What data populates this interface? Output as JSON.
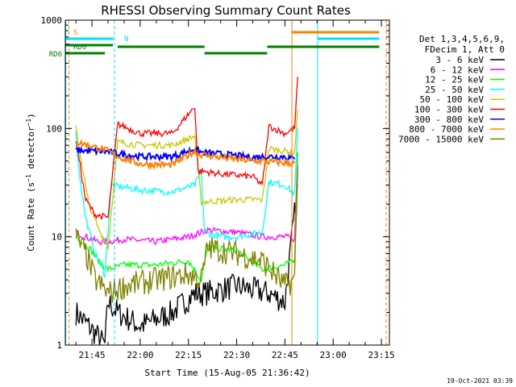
{
  "chart_data": {
    "type": "line",
    "title": "RHESSI Observing Summary Count Rates",
    "xlabel": "Start Time (15-Aug-05 21:36:42)",
    "ylabel": "Count Rate (s⁻¹ detector⁻¹)",
    "ylabel_main": "Count Rate (s",
    "ylabel_sup1": "−1",
    "ylabel_mid": " detector",
    "ylabel_sup2": "−1",
    "ylabel_end": ")",
    "yscale": "log",
    "ylim": [
      1,
      1000
    ],
    "xlim": [
      "21:36:42",
      "23:17:30"
    ],
    "x_ticks": [
      "21:45",
      "22:00",
      "22:15",
      "22:30",
      "22:45",
      "23:00",
      "23:15"
    ],
    "y_ticks": [
      "1",
      "10",
      "100",
      "1000"
    ],
    "legend_header": [
      "Det 1,3,4,5,6,9,",
      "FDecim 1, Att 0"
    ],
    "legend_position": "right",
    "footer_date": "19-Oct-2021 03:39",
    "flag_labels": {
      "saa": "S",
      "night": "N",
      "rd0": "RD0",
      "rd6": "RD6"
    },
    "flag_colors": {
      "saa": "#ff8000",
      "night": "#00e0ff",
      "rd": "#008000"
    },
    "series": [
      {
        "name": "3 - 6 keV",
        "color": "#000000",
        "x": [
          "21:40",
          "21:44",
          "21:49",
          "21:50",
          "21:53",
          "22:00",
          "22:10",
          "22:17",
          "22:20",
          "22:30",
          "22:40",
          "22:45",
          "22:49"
        ],
        "y": [
          2,
          1.5,
          1,
          2.5,
          2,
          1.5,
          2,
          3,
          3,
          3.5,
          3,
          2.5,
          30
        ]
      },
      {
        "name": "6 - 12 keV",
        "color": "#ff00ff",
        "x": [
          "21:40",
          "21:43",
          "21:47",
          "21:50",
          "21:55",
          "22:05",
          "22:15",
          "22:19",
          "22:21",
          "22:30",
          "22:38",
          "22:45",
          "22:48",
          "22:49"
        ],
        "y": [
          11,
          10,
          9,
          9,
          9.5,
          9,
          10,
          11,
          11.5,
          11,
          10,
          10,
          9.5,
          60
        ]
      },
      {
        "name": "12 - 25 keV",
        "color": "#00ff00",
        "x": [
          "21:40",
          "21:44",
          "21:47",
          "21:50",
          "21:55",
          "22:05",
          "22:15",
          "22:19",
          "22:21",
          "22:30",
          "22:38",
          "22:45",
          "22:48",
          "22:49"
        ],
        "y": [
          10,
          8,
          6,
          5,
          5.5,
          5.5,
          6,
          4,
          8,
          7.5,
          5,
          5.5,
          6,
          60
        ]
      },
      {
        "name": "25 - 50 keV",
        "color": "#00ffff",
        "x": [
          "21:40",
          "21:41",
          "21:43",
          "21:46",
          "21:49",
          "21:51",
          "22:00",
          "22:10",
          "22:17",
          "22:19",
          "22:20",
          "22:25",
          "22:30",
          "22:38",
          "22:40",
          "22:45",
          "22:48",
          "22:49"
        ],
        "y": [
          90,
          40,
          15,
          7,
          4.5,
          30,
          27,
          26,
          30,
          40,
          11,
          10,
          10,
          11,
          32,
          30,
          25,
          100
        ]
      },
      {
        "name": "50 - 100 keV",
        "color": "#c8c800",
        "x": [
          "21:40",
          "21:44",
          "21:47",
          "21:50",
          "21:53",
          "22:00",
          "22:10",
          "22:17",
          "22:19",
          "22:20",
          "22:30",
          "22:38",
          "22:40",
          "22:45",
          "22:48",
          "22:49"
        ],
        "y": [
          100,
          20,
          12,
          8,
          75,
          70,
          70,
          85,
          21,
          21,
          22,
          22,
          65,
          62,
          60,
          150
        ]
      },
      {
        "name": "100 - 300 keV",
        "color": "#ff0000",
        "x": [
          "21:40",
          "21:43",
          "21:46",
          "21:50",
          "21:53",
          "22:00",
          "22:10",
          "22:17",
          "22:18",
          "22:20",
          "22:25",
          "22:30",
          "22:35",
          "22:38",
          "22:40",
          "22:45",
          "22:48",
          "22:49"
        ],
        "y": [
          80,
          22,
          16,
          15,
          110,
          90,
          90,
          160,
          40,
          40,
          38,
          37,
          36,
          30,
          105,
          90,
          100,
          300
        ]
      },
      {
        "name": "300 - 800 keV",
        "color": "#0000ff",
        "x": [
          "21:40",
          "21:44",
          "21:50",
          "21:51",
          "22:00",
          "22:10",
          "22:17",
          "22:19",
          "22:25",
          "22:30",
          "22:35",
          "22:38",
          "22:45",
          "22:48"
        ],
        "y": [
          63,
          62,
          61,
          60,
          55,
          55,
          65,
          60,
          58,
          56,
          54,
          55,
          55,
          52
        ]
      },
      {
        "name": "800 - 7000 keV",
        "color": "#ff8000",
        "x": [
          "21:40",
          "21:44",
          "21:50",
          "21:53",
          "22:00",
          "22:10",
          "22:17",
          "22:18",
          "22:25",
          "22:30",
          "22:35",
          "22:38",
          "22:45",
          "22:48"
        ],
        "y": [
          75,
          70,
          62,
          55,
          47,
          46,
          62,
          58,
          54,
          52,
          50,
          50,
          48,
          48
        ]
      },
      {
        "name": "7000 - 15000 keV",
        "color": "#808000",
        "x": [
          "21:40",
          "21:43",
          "21:46",
          "21:50",
          "21:55",
          "22:05",
          "22:15",
          "22:19",
          "22:21",
          "22:25",
          "22:30",
          "22:38",
          "22:45",
          "22:48",
          "22:49"
        ],
        "y": [
          10,
          7,
          4,
          3,
          3.5,
          4,
          4.5,
          4,
          8,
          7.5,
          7,
          6,
          3.5,
          4,
          45
        ]
      }
    ]
  }
}
